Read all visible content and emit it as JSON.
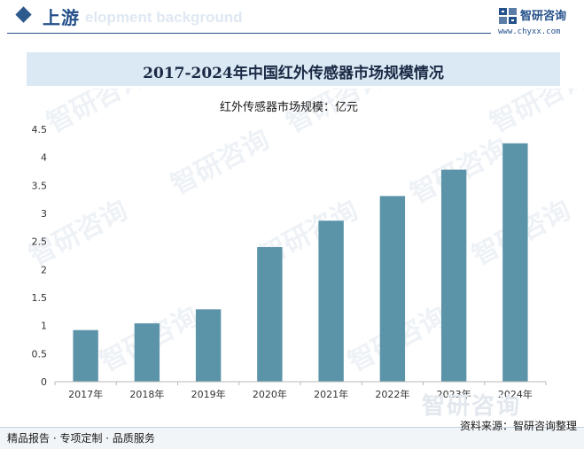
{
  "header": {
    "section_title": "上游",
    "ghost_text": "elopment background",
    "brand_name": "智研咨询",
    "brand_url": "www.chyxx.com"
  },
  "watermark_text": "智研咨询",
  "chart_data": {
    "type": "bar",
    "title": "2017-2024年中国红外传感器市场规模情况",
    "subtitle": "红外传感器市场规模：亿元",
    "categories": [
      "2017年",
      "2018年",
      "2019年",
      "2020年",
      "2021年",
      "2022年",
      "2023年",
      "2024年"
    ],
    "values": [
      0.92,
      1.04,
      1.29,
      2.4,
      2.87,
      3.31,
      3.78,
      4.25
    ],
    "yticks": [
      "0",
      "0.5",
      "1",
      "1.5",
      "2",
      "2.5",
      "3",
      "3.5",
      "4",
      "4.5"
    ],
    "ylim": [
      0,
      4.5
    ],
    "xlabel": "",
    "ylabel": "",
    "grid": false,
    "bar_color": "#5b93a8"
  },
  "footer": {
    "left_text": "精品报告 · 专项定制 · 品质服务",
    "source_text": "资料来源：智研咨询整理",
    "big_watermark": "智研咨询"
  }
}
